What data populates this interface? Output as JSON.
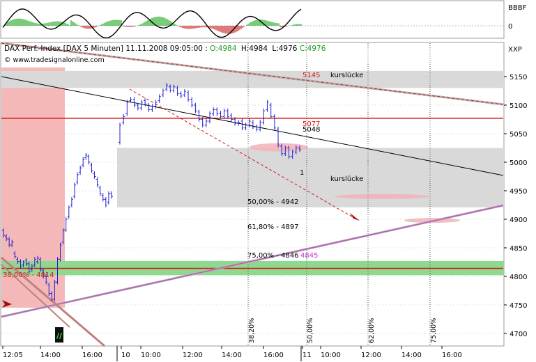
{
  "indicator": {
    "label_top": "BBBF",
    "label_zero": "0"
  },
  "header": {
    "title_line": "DAX Perf.-Index [DAX  5 Minuten] 11.11.2008 09:05:00 :",
    "ohlc_o": "O:4984",
    "ohlc_h": "H:4984",
    "ohlc_l": "L:4976",
    "ohlc_c": "C:4976",
    "source": "© www.tradesignalonline.com",
    "scale_label": "XXP"
  },
  "colors": {
    "bull": "#1f1fd0",
    "bear": "#1f1fd0",
    "hist_pos": "#22aa22",
    "hist_neg": "#cc2222",
    "resistance": "#d81818",
    "gap_band": "#d9d9d9",
    "support_band": "#8fd88f",
    "channel": "#c050c0",
    "red_zone": "#f4b8b8",
    "fib_text": "#000000",
    "red_text": "#d81818",
    "magenta_text": "#cc33cc"
  },
  "chart_data": {
    "type": "candlestick",
    "title": "DAX Perf.-Index [DAX  5 Minuten]",
    "ylim": [
      4680,
      5175
    ],
    "y_ticks": [
      4700,
      4750,
      4800,
      4850,
      4900,
      4950,
      5000,
      5050,
      5100,
      5150
    ],
    "x_ticks": [
      "12:05",
      "14:00",
      "16:00",
      "10",
      "10:00",
      "12:00",
      "14:00",
      "16:00",
      "11",
      "10:00",
      "12:00",
      "14:00",
      "16:00"
    ],
    "price_path": [
      [
        4880,
        4872
      ],
      [
        4870,
        4866
      ],
      [
        4865,
        4855
      ],
      [
        4855,
        4860
      ],
      [
        4840,
        4835
      ],
      [
        4830,
        4826
      ],
      [
        4826,
        4818
      ],
      [
        4820,
        4824
      ],
      [
        4828,
        4822
      ],
      [
        4822,
        4808
      ],
      [
        4812,
        4818
      ],
      [
        4820,
        4830
      ],
      [
        4826,
        4832
      ],
      [
        4830,
        4812
      ],
      [
        4810,
        4800
      ],
      [
        4800,
        4790
      ],
      [
        4785,
        4770
      ],
      [
        4770,
        4760
      ],
      [
        4760,
        4790
      ],
      [
        4790,
        4830
      ],
      [
        4830,
        4855
      ],
      [
        4860,
        4880
      ],
      [
        4882,
        4900
      ],
      [
        4905,
        4920
      ],
      [
        4925,
        4935
      ],
      [
        4940,
        4960
      ],
      [
        4965,
        4978
      ],
      [
        4982,
        4990
      ],
      [
        4995,
        5005
      ],
      [
        5008,
        5012
      ],
      [
        5010,
        5000
      ],
      [
        4995,
        4985
      ],
      [
        4980,
        4975
      ],
      [
        4970,
        4960
      ],
      [
        4955,
        4945
      ],
      [
        4942,
        4935
      ],
      [
        4935,
        4925
      ],
      [
        4930,
        4945
      ],
      [
        4945,
        4940
      ],
      [
        5035,
        5065
      ],
      [
        5070,
        5080
      ],
      [
        5085,
        5105
      ],
      [
        5108,
        5110
      ],
      [
        5110,
        5100
      ],
      [
        5100,
        5095
      ],
      [
        5095,
        5105
      ],
      [
        5108,
        5102
      ],
      [
        5100,
        5092
      ],
      [
        5092,
        5098
      ],
      [
        5098,
        5105
      ],
      [
        5108,
        5115
      ],
      [
        5118,
        5125
      ],
      [
        5128,
        5135
      ],
      [
        5132,
        5126
      ],
      [
        5126,
        5132
      ],
      [
        5130,
        5120
      ],
      [
        5120,
        5116
      ],
      [
        5118,
        5124
      ],
      [
        5122,
        5110
      ],
      [
        5110,
        5100
      ],
      [
        5100,
        5090
      ],
      [
        5088,
        5075
      ],
      [
        5075,
        5065
      ],
      [
        5065,
        5072
      ],
      [
        5072,
        5085
      ],
      [
        5085,
        5092
      ],
      [
        5092,
        5085
      ],
      [
        5086,
        5080
      ],
      [
        5080,
        5090
      ],
      [
        5090,
        5080
      ],
      [
        5082,
        5075
      ],
      [
        5075,
        5068
      ],
      [
        5068,
        5070
      ],
      [
        5072,
        5060
      ],
      [
        5060,
        5065
      ],
      [
        5065,
        5072
      ],
      [
        5070,
        5062
      ],
      [
        5062,
        5058
      ],
      [
        5058,
        5070
      ],
      [
        5070,
        5090
      ],
      [
        5092,
        5105
      ],
      [
        5100,
        5080
      ],
      [
        5080,
        5060
      ],
      [
        5058,
        5030
      ],
      [
        5028,
        5015
      ],
      [
        5015,
        5025
      ],
      [
        5025,
        5010
      ],
      [
        5010,
        5018
      ],
      [
        5018,
        5025
      ],
      [
        5025,
        5022
      ]
    ],
    "levels": [
      {
        "label": "5145",
        "value": 5145,
        "color": "#d81818"
      },
      {
        "label": "5077",
        "value": 5077,
        "color": "#d81818"
      },
      {
        "label": "5048",
        "value": 5048,
        "color": "#000000"
      },
      {
        "label": "50,00% - 4942",
        "value": 4942,
        "color": "#000000"
      },
      {
        "label": "61,80% - 4897",
        "value": 4897,
        "color": "#000000"
      },
      {
        "label": "75,00% - 4846",
        "value": 4846,
        "color": "#000000"
      },
      {
        "label": "4845",
        "value": 4845,
        "color": "#cc33cc"
      },
      {
        "label": "38,00% - 4814",
        "value": 4814,
        "color": "#d81818"
      }
    ],
    "annotations": {
      "gap_upper": "kurslücke",
      "gap_lower": "kurslücke",
      "marker_1": "1"
    },
    "time_fib": [
      "38,20%",
      "50,00%",
      "62,00%",
      "75,00%"
    ]
  }
}
